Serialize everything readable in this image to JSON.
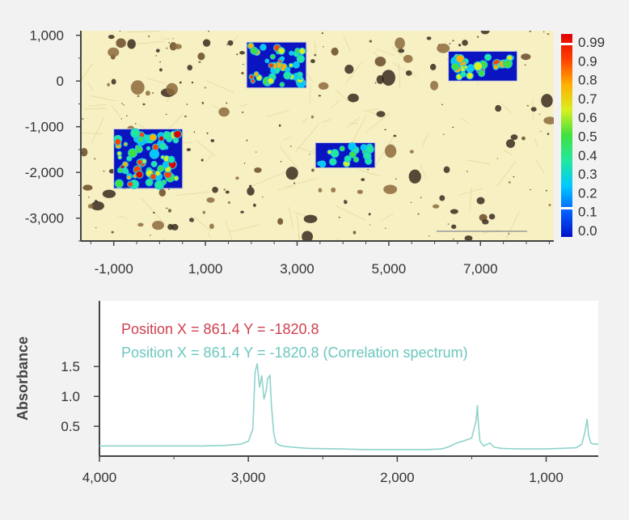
{
  "chart_data": [
    {
      "type": "heatmap",
      "title": "",
      "xlabel": "",
      "ylabel": "",
      "xlim": [
        -1700,
        8600
      ],
      "ylim": [
        -3500,
        1100
      ],
      "x_ticks": [
        {
          "value": -1000,
          "label": "-1,000"
        },
        {
          "value": 1000,
          "label": "1,000"
        },
        {
          "value": 3000,
          "label": "3,000"
        },
        {
          "value": 5000,
          "label": "5,000"
        },
        {
          "value": 7000,
          "label": "7,000"
        }
      ],
      "y_ticks": [
        {
          "value": 1000,
          "label": "1,000"
        },
        {
          "value": 0,
          "label": "0"
        },
        {
          "value": -1000,
          "label": "-1,000"
        },
        {
          "value": -2000,
          "label": "-2,000"
        },
        {
          "value": -3000,
          "label": "-3,000"
        }
      ],
      "colorbar": {
        "range": [
          0.0,
          0.99
        ],
        "labels": [
          "0.99",
          "0.9",
          "0.8",
          "0.7",
          "0.6",
          "0.5",
          "0.4",
          "0.3",
          "0.2",
          "0.1",
          "0.0"
        ],
        "colors": [
          "#0010c8",
          "#0060ff",
          "#00c8ff",
          "#20e8a0",
          "#40e040",
          "#d8f020",
          "#ffb000",
          "#ff4000",
          "#e00000"
        ]
      },
      "regions": [
        {
          "x": [
            -1000,
            500
          ],
          "y": [
            -2350,
            -1050
          ],
          "intensity": 0.95
        },
        {
          "x": [
            1900,
            3200
          ],
          "y": [
            -150,
            850
          ],
          "intensity": 0.8
        },
        {
          "x": [
            3400,
            4700
          ],
          "y": [
            -1900,
            -1350
          ],
          "intensity": 0.5
        },
        {
          "x": [
            6300,
            7800
          ],
          "y": [
            0,
            650
          ],
          "intensity": 0.75
        }
      ]
    },
    {
      "type": "line",
      "title": "",
      "xlabel": "",
      "ylabel": "Absorbance",
      "xlim": [
        4000,
        650
      ],
      "ylim": [
        0,
        2.6
      ],
      "x_ticks": [
        {
          "value": 4000,
          "label": "4,000"
        },
        {
          "value": 3000,
          "label": "3,000"
        },
        {
          "value": 2000,
          "label": "2,000"
        },
        {
          "value": 1000,
          "label": "1,000"
        }
      ],
      "y_ticks": [
        {
          "value": 1.5,
          "label": "1.5"
        },
        {
          "value": 1.0,
          "label": "1.0"
        },
        {
          "value": 0.5,
          "label": "0.5"
        }
      ],
      "legend": [
        "Position X = 861.4 Y = -1820.8",
        "Position X = 861.4 Y = -1820.8 (Correlation spectrum)"
      ],
      "series": [
        {
          "color": "#8fd3cc",
          "x": [
            4000,
            3600,
            3300,
            3150,
            3050,
            3000,
            2970,
            2955,
            2940,
            2925,
            2910,
            2895,
            2880,
            2870,
            2855,
            2845,
            2830,
            2815,
            2790,
            2750,
            2700,
            2600,
            2400,
            2200,
            2000,
            1800,
            1700,
            1650,
            1600,
            1560,
            1500,
            1470,
            1462,
            1455,
            1445,
            1420,
            1378,
            1350,
            1300,
            1200,
            1000,
            900,
            800,
            760,
            740,
            725,
            715,
            700,
            680,
            650
          ],
          "y": [
            0.17,
            0.17,
            0.17,
            0.18,
            0.2,
            0.25,
            0.45,
            1.4,
            1.55,
            1.15,
            1.35,
            0.95,
            1.1,
            1.3,
            1.35,
            0.85,
            0.4,
            0.22,
            0.18,
            0.16,
            0.15,
            0.13,
            0.12,
            0.11,
            0.11,
            0.11,
            0.12,
            0.16,
            0.22,
            0.25,
            0.3,
            0.6,
            0.85,
            0.55,
            0.25,
            0.17,
            0.22,
            0.15,
            0.13,
            0.12,
            0.12,
            0.13,
            0.14,
            0.2,
            0.4,
            0.62,
            0.35,
            0.22,
            0.2,
            0.2
          ]
        }
      ]
    }
  ]
}
